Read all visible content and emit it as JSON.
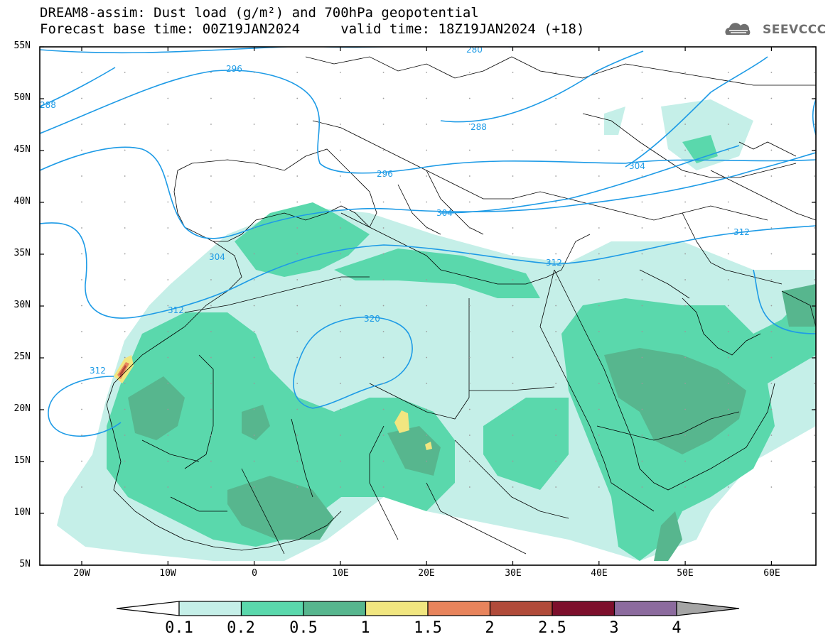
{
  "header": {
    "title_line1": "DREAM8-assim: Dust load (g/m²) and 700hPa geopotential",
    "title_line2": "Forecast base time: 00Z19JAN2024     valid time: 18Z19JAN2024 (+18)",
    "logo_text": "SEEVCCC"
  },
  "map": {
    "lat_labels": [
      "55N",
      "50N",
      "45N",
      "40N",
      "35N",
      "30N",
      "25N",
      "20N",
      "15N",
      "10N",
      "5N"
    ],
    "lon_labels": [
      "20W",
      "10W",
      "0",
      "10E",
      "20E",
      "30E",
      "40E",
      "50E",
      "60E"
    ],
    "contour_labels": [
      "280",
      "296",
      "288",
      "288",
      "296",
      "304",
      "304",
      "304",
      "312",
      "312",
      "312",
      "320",
      "312"
    ],
    "colors": {
      "contour": "#1e9be6",
      "coast": "#000000",
      "dust_0_1": "#c5efe8",
      "dust_0_2": "#5ad8ac",
      "dust_0_5": "#57b68e",
      "dust_1": "#f1e680",
      "dust_1_5": "#e8845c",
      "dust_2": "#b14b3a"
    }
  },
  "colorbar": {
    "levels": [
      "0.1",
      "0.2",
      "0.5",
      "1",
      "1.5",
      "2",
      "2.5",
      "3",
      "4"
    ],
    "colors": [
      "#c5efe8",
      "#5ad8ac",
      "#57b68e",
      "#f1e680",
      "#e8845c",
      "#b14b3a",
      "#7d0f2c",
      "#8c6b9e"
    ],
    "left_arrow_color": "#ffffff",
    "right_arrow_color": "#a5a5a5"
  }
}
